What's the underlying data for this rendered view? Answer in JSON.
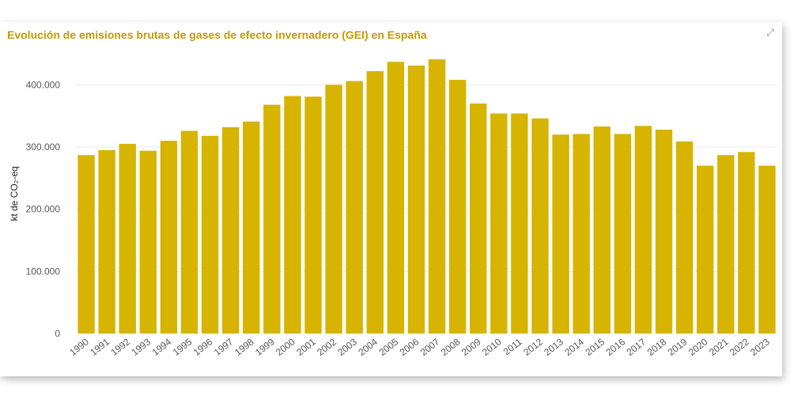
{
  "visual": {
    "title": "Evolución de emisiones brutas de gases de efecto invernadero (GEI) en España",
    "expand_icon": "expand-icon"
  },
  "colors": {
    "bar": "#D6B400",
    "title": "#C59A00",
    "grid": "#E8E8E8"
  },
  "chart_data": {
    "type": "bar",
    "title": "Evolución de emisiones brutas de gases de efecto invernadero (GEI) en España",
    "xlabel": "",
    "ylabel": "kt de CO₂-eq",
    "ylim": [
      0,
      450000
    ],
    "yticks": [
      0,
      100000,
      200000,
      300000,
      400000
    ],
    "ytick_labels": [
      "0",
      "100.000",
      "200.000",
      "300.000",
      "400.000"
    ],
    "grid": true,
    "categories": [
      "1990",
      "1991",
      "1992",
      "1993",
      "1994",
      "1995",
      "1996",
      "1997",
      "1998",
      "1999",
      "2000",
      "2001",
      "2002",
      "2003",
      "2004",
      "2005",
      "2006",
      "2007",
      "2008",
      "2009",
      "2010",
      "2011",
      "2012",
      "2013",
      "2014",
      "2015",
      "2016",
      "2017",
      "2018",
      "2019",
      "2020",
      "2021",
      "2022",
      "2023"
    ],
    "values": [
      287000,
      295000,
      305000,
      294000,
      310000,
      326000,
      318000,
      332000,
      341000,
      368000,
      382000,
      381000,
      400000,
      406000,
      422000,
      437000,
      431000,
      441000,
      408000,
      370000,
      354000,
      354000,
      346000,
      320000,
      321000,
      333000,
      321000,
      334000,
      328000,
      309000,
      270000,
      287000,
      292000,
      270000
    ]
  }
}
